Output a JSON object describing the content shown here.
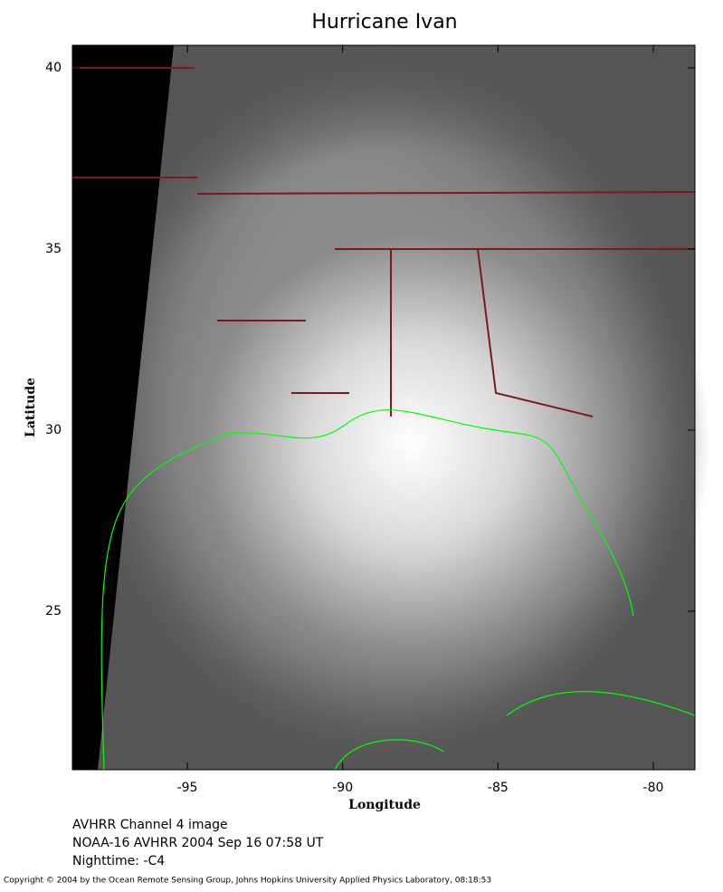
{
  "map": {
    "title": "Hurricane Ivan",
    "xlabel": "Longitude",
    "ylabel": "Latitude",
    "xlim": [
      -98.7,
      -78.66
    ],
    "ylim": [
      20.625,
      40.625
    ],
    "xticks": [
      -95,
      -90,
      -85,
      -80
    ],
    "yticks": [
      25,
      30,
      35,
      40
    ],
    "caption": [
      "AVHRR Channel 4 image",
      "NOAA-16 AVHRR 2004 Sep 16 07:58 UT",
      "Nighttime: -C4"
    ],
    "copyright": "Copyright © 2004 by the Ocean Remote Sensing Group, Johns Hopkins University Applied Physics Laboratory, 08:18:53"
  }
}
